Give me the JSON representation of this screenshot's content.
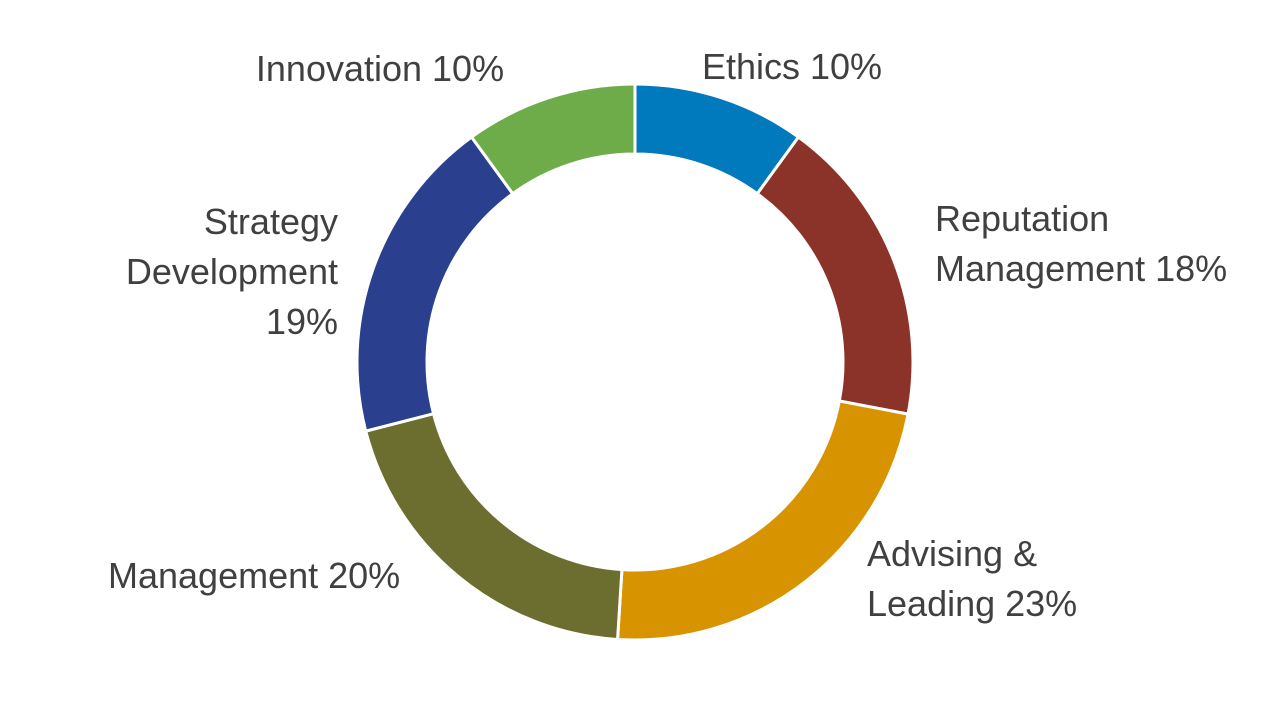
{
  "chart_data": {
    "type": "pie",
    "variant": "donut",
    "title": "",
    "legend": "none",
    "background_color": "#FFFFFF",
    "label_color": "#404040",
    "separator_color": "#FFFFFF",
    "start_angle_deg": 0,
    "direction": "clockwise",
    "unit": "%",
    "categories": [
      "Ethics",
      "Reputation Management",
      "Advising & Leading",
      "Management",
      "Strategy Development",
      "Innovation"
    ],
    "values": [
      10,
      18,
      23,
      20,
      19,
      10
    ],
    "colors": [
      "#0079BD",
      "#8B3329",
      "#D89300",
      "#6C6E30",
      "#2B3F8F",
      "#6EAC49"
    ],
    "slices": [
      {
        "id": "ethics",
        "name": "Ethics",
        "value": 10,
        "color": "#0079BD",
        "label_lines": [
          "Ethics 10%"
        ]
      },
      {
        "id": "reputation-management",
        "name": "Reputation Management",
        "value": 18,
        "color": "#8B3329",
        "label_lines": [
          "Reputation",
          "Management 18%"
        ]
      },
      {
        "id": "advising-leading",
        "name": "Advising & Leading",
        "value": 23,
        "color": "#D89300",
        "label_lines": [
          "Advising &",
          "Leading 23%"
        ]
      },
      {
        "id": "management",
        "name": "Management",
        "value": 20,
        "color": "#6C6E30",
        "label_lines": [
          "Management 20%"
        ]
      },
      {
        "id": "strategy-development",
        "name": "Strategy Development",
        "value": 19,
        "color": "#2B3F8F",
        "label_lines": [
          "Strategy",
          "Development",
          "19%"
        ]
      },
      {
        "id": "innovation",
        "name": "Innovation",
        "value": 10,
        "color": "#6EAC49",
        "label_lines": [
          "Innovation 10%"
        ]
      }
    ]
  }
}
